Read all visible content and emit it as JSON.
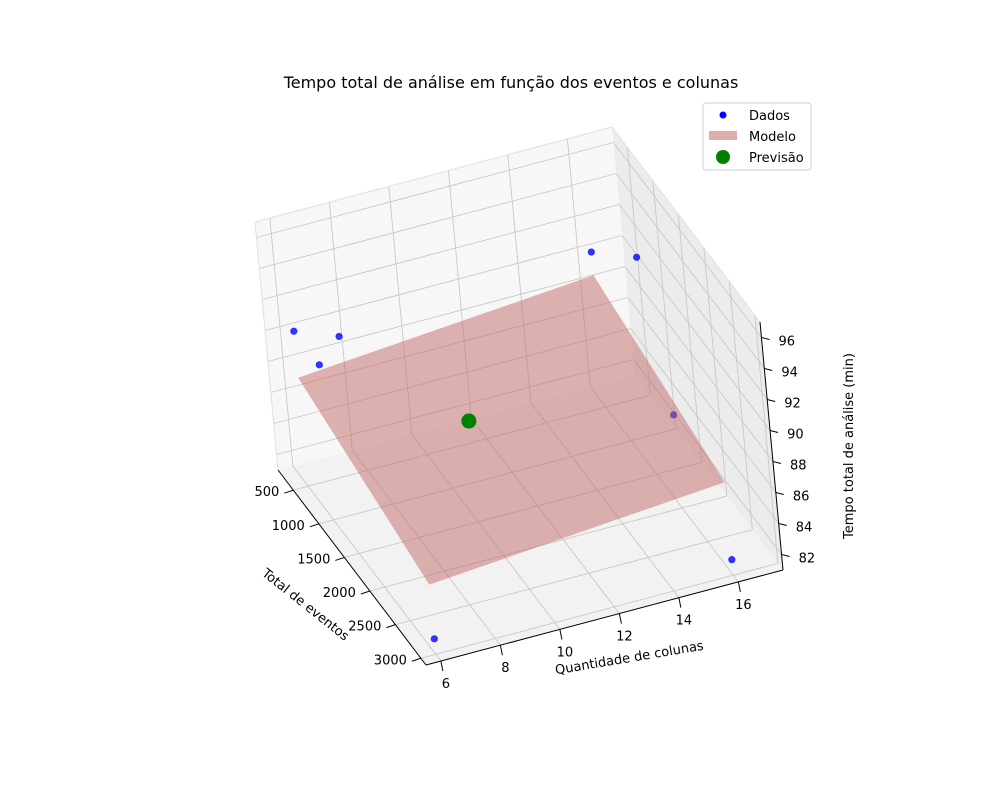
{
  "chart_data": {
    "type": "scatter3d",
    "title": "Tempo total de análise em função dos eventos e colunas",
    "xlabel": "Total de eventos",
    "ylabel": "Quantidade de colunas",
    "zlabel": "Tempo total de análise (min)",
    "xticks": [
      500,
      1000,
      1500,
      2000,
      2500,
      3000
    ],
    "yticks": [
      6,
      8,
      10,
      12,
      14,
      16
    ],
    "zticks": [
      82,
      84,
      86,
      88,
      90,
      92,
      94,
      96
    ],
    "xlim": [
      200,
      3100
    ],
    "ylim": [
      5.5,
      17.5
    ],
    "zlim": [
      81,
      97
    ],
    "grid": true,
    "legend": {
      "position": "top-right",
      "entries": [
        {
          "label": "Dados",
          "color": "#0000ff",
          "marker": "circle"
        },
        {
          "label": "Modelo",
          "color": "#c46a6a",
          "marker": "patch"
        },
        {
          "label": "Previsão",
          "color": "#008000",
          "marker": "circle-large"
        }
      ]
    },
    "series": [
      {
        "name": "Dados",
        "color": "#0000ff",
        "points": [
          {
            "x": 500,
            "y": 6,
            "z": 91
          },
          {
            "x": 500,
            "y": 16,
            "z": 91
          },
          {
            "x": 1500,
            "y": 6,
            "z": 95
          },
          {
            "x": 1500,
            "y": 16,
            "z": 95
          },
          {
            "x": 3000,
            "y": 6,
            "z": 82
          },
          {
            "x": 3000,
            "y": 16,
            "z": 82
          },
          {
            "x": 1000,
            "y": 6,
            "z": 91
          },
          {
            "x": 2000,
            "y": 16,
            "z": 87
          }
        ]
      },
      {
        "name": "Modelo",
        "color": "#c46a6a",
        "corners": [
          {
            "x": 500,
            "y": 6,
            "z": 88.0
          },
          {
            "x": 500,
            "y": 16,
            "z": 89.5
          },
          {
            "x": 3000,
            "y": 16,
            "z": 87.0
          },
          {
            "x": 3000,
            "y": 6,
            "z": 85.5
          }
        ]
      },
      {
        "name": "Previsão",
        "color": "#008000",
        "points": [
          {
            "x": 1500,
            "y": 10,
            "z": 87.5
          }
        ]
      }
    ]
  }
}
